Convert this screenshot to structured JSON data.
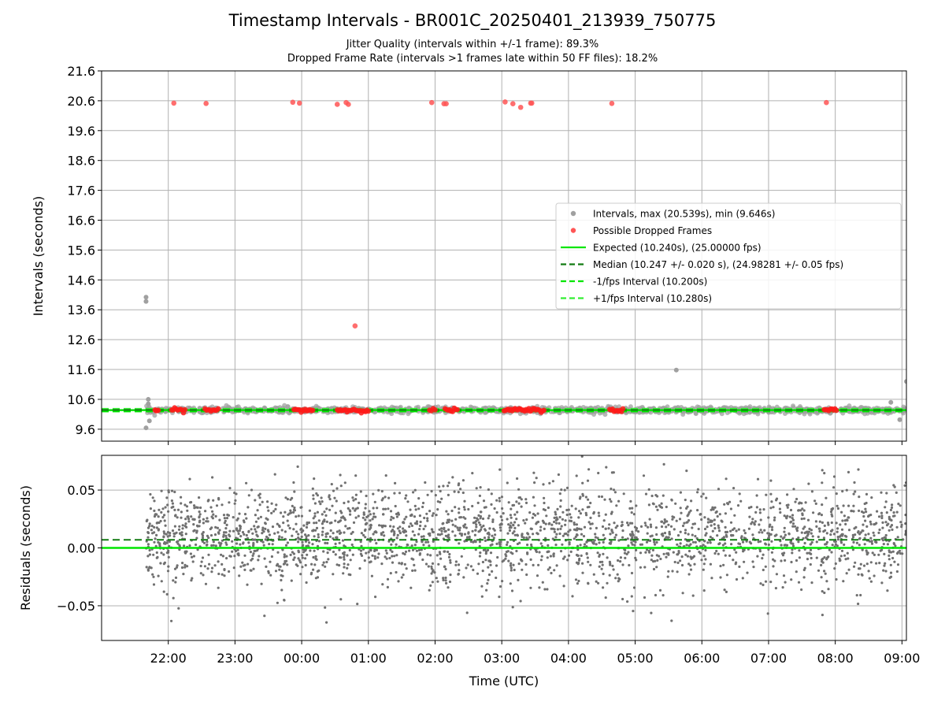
{
  "chart_data": [
    {
      "type": "scatter",
      "title": "Timestamp Intervals - BR001C_20250401_213939_750775",
      "subtitle_lines": [
        "Jitter Quality (intervals within +/-1 frame): 89.3%",
        "Dropped Frame Rate (intervals >1 frames late within 50 FF files): 18.2%"
      ],
      "xlabel": "",
      "ylabel": "Intervals (seconds)",
      "ylim": [
        9.2,
        21.6
      ],
      "yticks": [
        "9.6",
        "10.6",
        "11.6",
        "12.6",
        "13.6",
        "14.6",
        "15.6",
        "16.6",
        "17.6",
        "18.6",
        "19.6",
        "20.6",
        "21.6"
      ],
      "ytick_values": [
        9.6,
        10.6,
        11.6,
        12.6,
        13.6,
        14.6,
        15.6,
        16.6,
        17.6,
        18.6,
        19.6,
        20.6,
        21.6
      ],
      "grid": true,
      "legend_position": "center-right",
      "legend": [
        {
          "label": "Intervals, max (20.539s), min (9.646s)",
          "kind": "dot",
          "color": "#a0a0a0"
        },
        {
          "label": "Possible Dropped Frames",
          "kind": "dot",
          "color": "#ff5555"
        },
        {
          "label": "Expected (10.240s), (25.00000 fps)",
          "kind": "line",
          "color": "#00e600",
          "dash": "solid"
        },
        {
          "label": "Median (10.247 +/- 0.020 s), (24.98281 +/- 0.05 fps)",
          "kind": "line",
          "color": "#127a12",
          "dash": "dashed"
        },
        {
          "label": "-1/fps Interval (10.200s)",
          "kind": "line",
          "color": "#00e600",
          "dash": "dashed"
        },
        {
          "label": "+1/fps Interval (10.280s)",
          "kind": "line",
          "color": "#33ee33",
          "dash": "dashed"
        }
      ],
      "reference_lines": {
        "expected": 10.24,
        "median": 10.247,
        "minus_1fps": 10.2,
        "plus_1fps": 10.28
      },
      "series": [
        {
          "name": "Intervals, max (20.539s), min (9.646s)",
          "color": "#a0a0a0",
          "points": [
            {
              "t": "21:40",
              "y": 14.02
            },
            {
              "t": "21:40",
              "y": 13.88
            },
            {
              "t": "21:40",
              "y": 9.646
            },
            {
              "t": "21:42",
              "y": 10.6
            },
            {
              "t": "21:42",
              "y": 10.45
            },
            {
              "t": "21:43",
              "y": 9.88
            },
            {
              "t": "05:37",
              "y": 11.58
            },
            {
              "t": "08:50",
              "y": 10.5
            },
            {
              "t": "08:58",
              "y": 9.92
            },
            {
              "t": "09:04",
              "y": 11.2
            }
          ],
          "dense_band": {
            "from": "21:40",
            "to": "09:04",
            "center": 10.24,
            "spread": 0.05
          }
        },
        {
          "name": "Possible Dropped Frames",
          "color": "#ff5555",
          "points": [
            {
              "t": "22:05",
              "y": 20.52
            },
            {
              "t": "22:34",
              "y": 20.51
            },
            {
              "t": "23:52",
              "y": 20.55
            },
            {
              "t": "23:58",
              "y": 20.52
            },
            {
              "t": "00:32",
              "y": 20.48
            },
            {
              "t": "00:40",
              "y": 20.54
            },
            {
              "t": "00:42",
              "y": 20.48
            },
            {
              "t": "00:48",
              "y": 13.06
            },
            {
              "t": "01:57",
              "y": 20.54
            },
            {
              "t": "02:08",
              "y": 20.5
            },
            {
              "t": "02:10",
              "y": 20.5
            },
            {
              "t": "03:03",
              "y": 20.56
            },
            {
              "t": "03:10",
              "y": 20.5
            },
            {
              "t": "03:17",
              "y": 20.38
            },
            {
              "t": "03:26",
              "y": 20.52
            },
            {
              "t": "03:27",
              "y": 20.52
            },
            {
              "t": "04:39",
              "y": 20.51
            },
            {
              "t": "07:52",
              "y": 20.539
            }
          ],
          "baseline_clusters": [
            {
              "from": "21:48",
              "to": "21:51"
            },
            {
              "from": "22:03",
              "to": "22:15"
            },
            {
              "from": "22:33",
              "to": "22:45"
            },
            {
              "from": "23:53",
              "to": "00:10"
            },
            {
              "from": "00:32",
              "to": "01:00"
            },
            {
              "from": "01:55",
              "to": "02:00"
            },
            {
              "from": "02:09",
              "to": "02:20"
            },
            {
              "from": "03:02",
              "to": "03:38"
            },
            {
              "from": "04:37",
              "to": "04:49"
            },
            {
              "from": "07:50",
              "to": "08:01"
            }
          ]
        }
      ]
    },
    {
      "type": "scatter",
      "xlabel": "Time (UTC)",
      "ylabel": "Residuals (seconds)",
      "ylim": [
        -0.08,
        0.08
      ],
      "yticks": [
        "−0.05",
        "0.00",
        "0.05"
      ],
      "ytick_values": [
        -0.05,
        0.0,
        0.05
      ],
      "xlim": [
        "21:00",
        "09:04"
      ],
      "xticks": [
        "22:00",
        "23:00",
        "00:00",
        "01:00",
        "02:00",
        "03:00",
        "04:00",
        "05:00",
        "06:00",
        "07:00",
        "08:00",
        "09:00"
      ],
      "grid": true,
      "reference_lines": {
        "zero": 0.0,
        "median_offset": 0.007
      },
      "series": [
        {
          "name": "",
          "color": "#707070",
          "distribution": {
            "from": "21:40",
            "to": "09:04",
            "center": 0.01,
            "spread": 0.022,
            "count": 2600
          }
        }
      ]
    }
  ]
}
